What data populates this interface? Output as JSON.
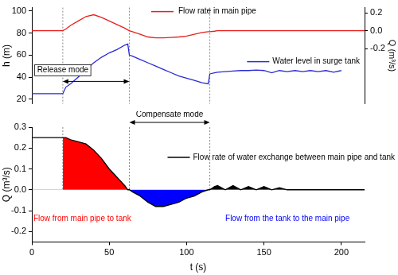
{
  "chart_data": [
    {
      "type": "line",
      "x": [
        0,
        10,
        20,
        22,
        25,
        30,
        35,
        40,
        45,
        50,
        55,
        60,
        62,
        63,
        65,
        70,
        75,
        80,
        85,
        90,
        95,
        100,
        105,
        110,
        114,
        115,
        118,
        120,
        125,
        130,
        135,
        140,
        145,
        150,
        155,
        160,
        165,
        170,
        175,
        180,
        185,
        190,
        195,
        200,
        205,
        210,
        215
      ],
      "series": [
        {
          "name": "Flow rate in main pipe",
          "color": "#e8201e",
          "axis": "y2",
          "values": [
            0,
            0,
            0,
            0.02,
            0.06,
            0.11,
            0.16,
            0.18,
            0.15,
            0.11,
            0.07,
            0.03,
            0.01,
            0,
            -0.01,
            -0.04,
            -0.07,
            -0.08,
            -0.08,
            -0.075,
            -0.07,
            -0.06,
            -0.04,
            -0.02,
            -0.01,
            -0.01,
            -0.005,
            0,
            0,
            0,
            0,
            0,
            0,
            0,
            0,
            0,
            0,
            0,
            0,
            0,
            0,
            0,
            0,
            0,
            0,
            0,
            0
          ]
        },
        {
          "name": "Water level in surge tank",
          "color": "#2a2ad4",
          "values": [
            25,
            25,
            25,
            31,
            34,
            40,
            47,
            53,
            58,
            62,
            65,
            69,
            70,
            60,
            59,
            56,
            53,
            50,
            47,
            44,
            41,
            39,
            37,
            35,
            34,
            43,
            44,
            44.5,
            45,
            45.5,
            46,
            46,
            46.5,
            46,
            44,
            46,
            45,
            46,
            45,
            46,
            45,
            46,
            44.5,
            46,
            null,
            null,
            null
          ]
        }
      ],
      "y_label": "h (m)",
      "y2_label": "Q (m³/s)",
      "xlim": [
        0,
        215
      ],
      "ylim": [
        16,
        103
      ],
      "yticks": [
        20,
        40,
        60,
        80,
        100
      ],
      "y2lim": [
        -0.82,
        0.26
      ],
      "y2ticks": [
        -0.2,
        {
          "value": 0,
          "label": "0.0"
        },
        0.2
      ],
      "grid": false,
      "tick_labels": "y",
      "annotations": [
        {
          "text": "Release mode",
          "x": [
            20,
            63
          ]
        }
      ]
    },
    {
      "type": "line",
      "x": [
        0,
        10,
        20,
        22,
        25,
        30,
        35,
        40,
        45,
        50,
        55,
        60,
        62,
        63,
        65,
        70,
        75,
        80,
        85,
        90,
        95,
        100,
        105,
        110,
        114,
        115,
        118,
        120,
        125,
        130,
        135,
        140,
        145,
        150,
        155,
        160,
        165,
        170,
        175,
        180,
        185,
        190,
        195,
        200,
        205,
        210,
        215
      ],
      "series": [
        {
          "name": "Flow rate of water exchange between main pipe and tank",
          "color": "#000000",
          "type": "area",
          "values": [
            0.25,
            0.25,
            0.25,
            0.25,
            0.24,
            0.23,
            0.22,
            0.19,
            0.15,
            0.1,
            0.06,
            0.02,
            0,
            0,
            -0.01,
            -0.03,
            -0.06,
            -0.08,
            -0.08,
            -0.07,
            -0.06,
            -0.04,
            -0.03,
            -0.01,
            0,
            0,
            0.015,
            0.02,
            0,
            0.02,
            0,
            0.015,
            0,
            0.015,
            0,
            0.01,
            0,
            0,
            0,
            0,
            0,
            0,
            0,
            0,
            0,
            0,
            0
          ]
        }
      ],
      "x_label": "t (s)",
      "y_label": "Q (m³/s)",
      "xlim": [
        0,
        215
      ],
      "xticks": [
        0,
        50,
        100,
        150,
        200
      ],
      "ylim": [
        -0.25,
        0.3
      ],
      "yticks": [
        -0.2,
        -0.1,
        {
          "value": 0,
          "label": "0.0"
        },
        0.1,
        0.2,
        0.3
      ],
      "grid": false,
      "annotations": [
        {
          "text": "Compensate mode",
          "x": [
            63,
            115
          ]
        },
        {
          "text": "Flow from main pipe to tank",
          "x": 1,
          "y": -0.14,
          "color": "#ff0000"
        },
        {
          "text": "Flow from the tank to the main pipe",
          "x": 125,
          "y": -0.14,
          "color": "#0000ff"
        }
      ]
    }
  ]
}
